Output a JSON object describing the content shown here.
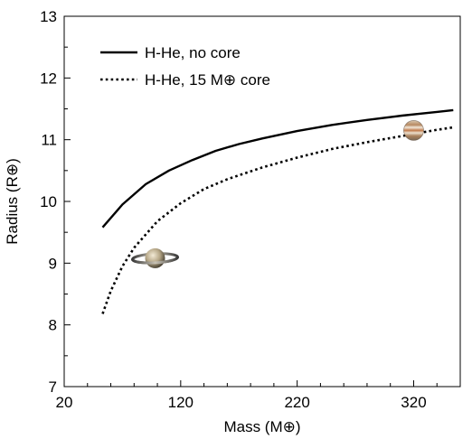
{
  "chart_data": {
    "type": "line",
    "title": "",
    "xlabel": "Mass (M⊕)",
    "ylabel": "Radius (R⊕)",
    "xlim": [
      20,
      360
    ],
    "ylim": [
      7,
      13
    ],
    "xticks": [
      20,
      120,
      220,
      320
    ],
    "yticks": [
      7,
      8,
      9,
      10,
      11,
      12,
      13
    ],
    "grid": false,
    "legend": "top-left",
    "series": [
      {
        "name": "H-He, no core",
        "style": "solid",
        "color": "#000000",
        "x": [
          53,
          70,
          90,
          110,
          130,
          150,
          170,
          190,
          220,
          250,
          280,
          310,
          340,
          354
        ],
        "y": [
          9.58,
          9.95,
          10.28,
          10.5,
          10.67,
          10.82,
          10.93,
          11.02,
          11.14,
          11.24,
          11.32,
          11.39,
          11.45,
          11.48
        ]
      },
      {
        "name": "H-He, 15 M⊕ core",
        "style": "dotted",
        "color": "#000000",
        "x": [
          53,
          60,
          70,
          80,
          100,
          120,
          140,
          160,
          190,
          220,
          250,
          280,
          310,
          340,
          354
        ],
        "y": [
          8.18,
          8.55,
          8.95,
          9.25,
          9.68,
          9.97,
          10.2,
          10.36,
          10.55,
          10.71,
          10.85,
          10.96,
          11.06,
          11.16,
          11.2
        ]
      }
    ],
    "annotations": [
      {
        "icon": "saturn-icon",
        "x": 98,
        "y": 9.08
      },
      {
        "icon": "jupiter-icon",
        "x": 320,
        "y": 11.15
      }
    ]
  }
}
